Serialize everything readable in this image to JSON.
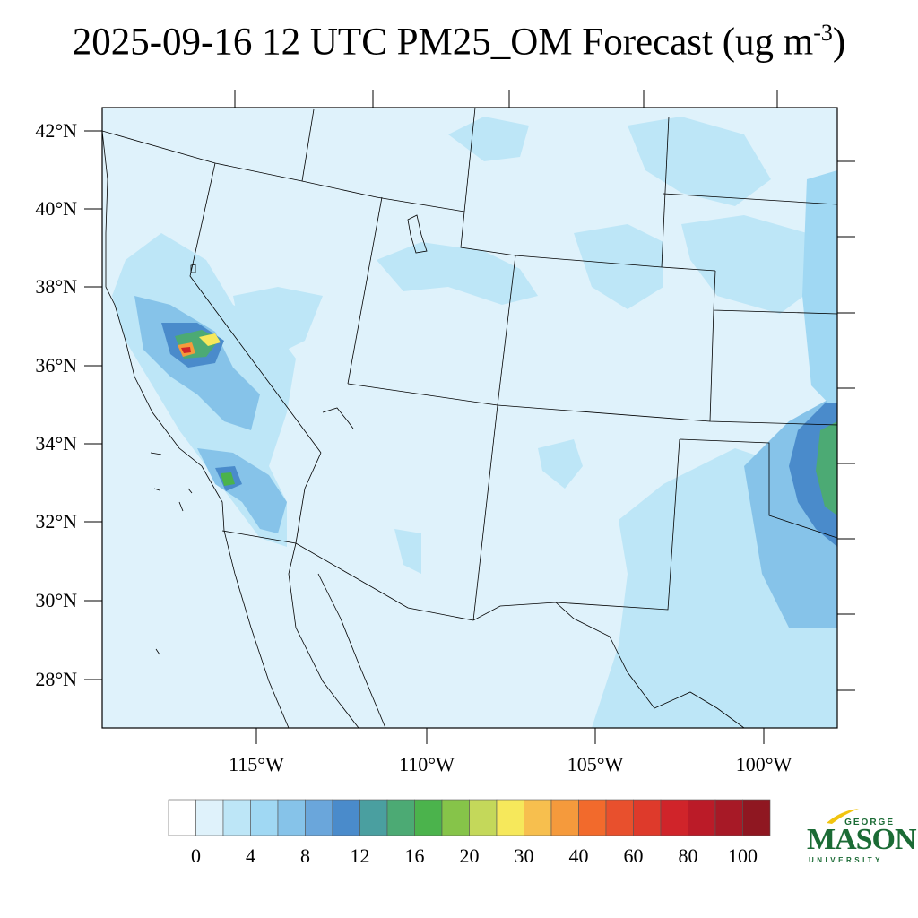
{
  "title": {
    "main": "2025-09-16 12 UTC PM25_OM Forecast (ug m",
    "superscript": "-3",
    "close": ")"
  },
  "map": {
    "lat_labels": [
      "42°N",
      "40°N",
      "38°N",
      "36°N",
      "34°N",
      "32°N",
      "30°N",
      "28°N"
    ],
    "lon_labels": [
      "115°W",
      "110°W",
      "105°W",
      "100°W"
    ],
    "background_color": "#dff2fb",
    "border_color": "#000000"
  },
  "colorbar": {
    "colors": [
      "#ffffff",
      "#dff2fb",
      "#bde6f7",
      "#a0d8f3",
      "#86c3e9",
      "#6aa6db",
      "#4a8bcb",
      "#4a9fa0",
      "#4caa74",
      "#4bb34c",
      "#86c449",
      "#c4d85a",
      "#f6e85b",
      "#f7bf4e",
      "#f59a3c",
      "#f26a2c",
      "#e8502d",
      "#de3a2b",
      "#d0242a",
      "#bb1b28",
      "#a71926",
      "#8f1721"
    ],
    "labels": [
      "0",
      "4",
      "8",
      "12",
      "16",
      "20",
      "30",
      "40",
      "60",
      "80",
      "100"
    ]
  },
  "logo": {
    "line1": "GEORGE",
    "line2": "MASON",
    "line3": "UNIVERSITY",
    "brand_color": "#1b6b35",
    "accent_color": "#f1c40f"
  }
}
